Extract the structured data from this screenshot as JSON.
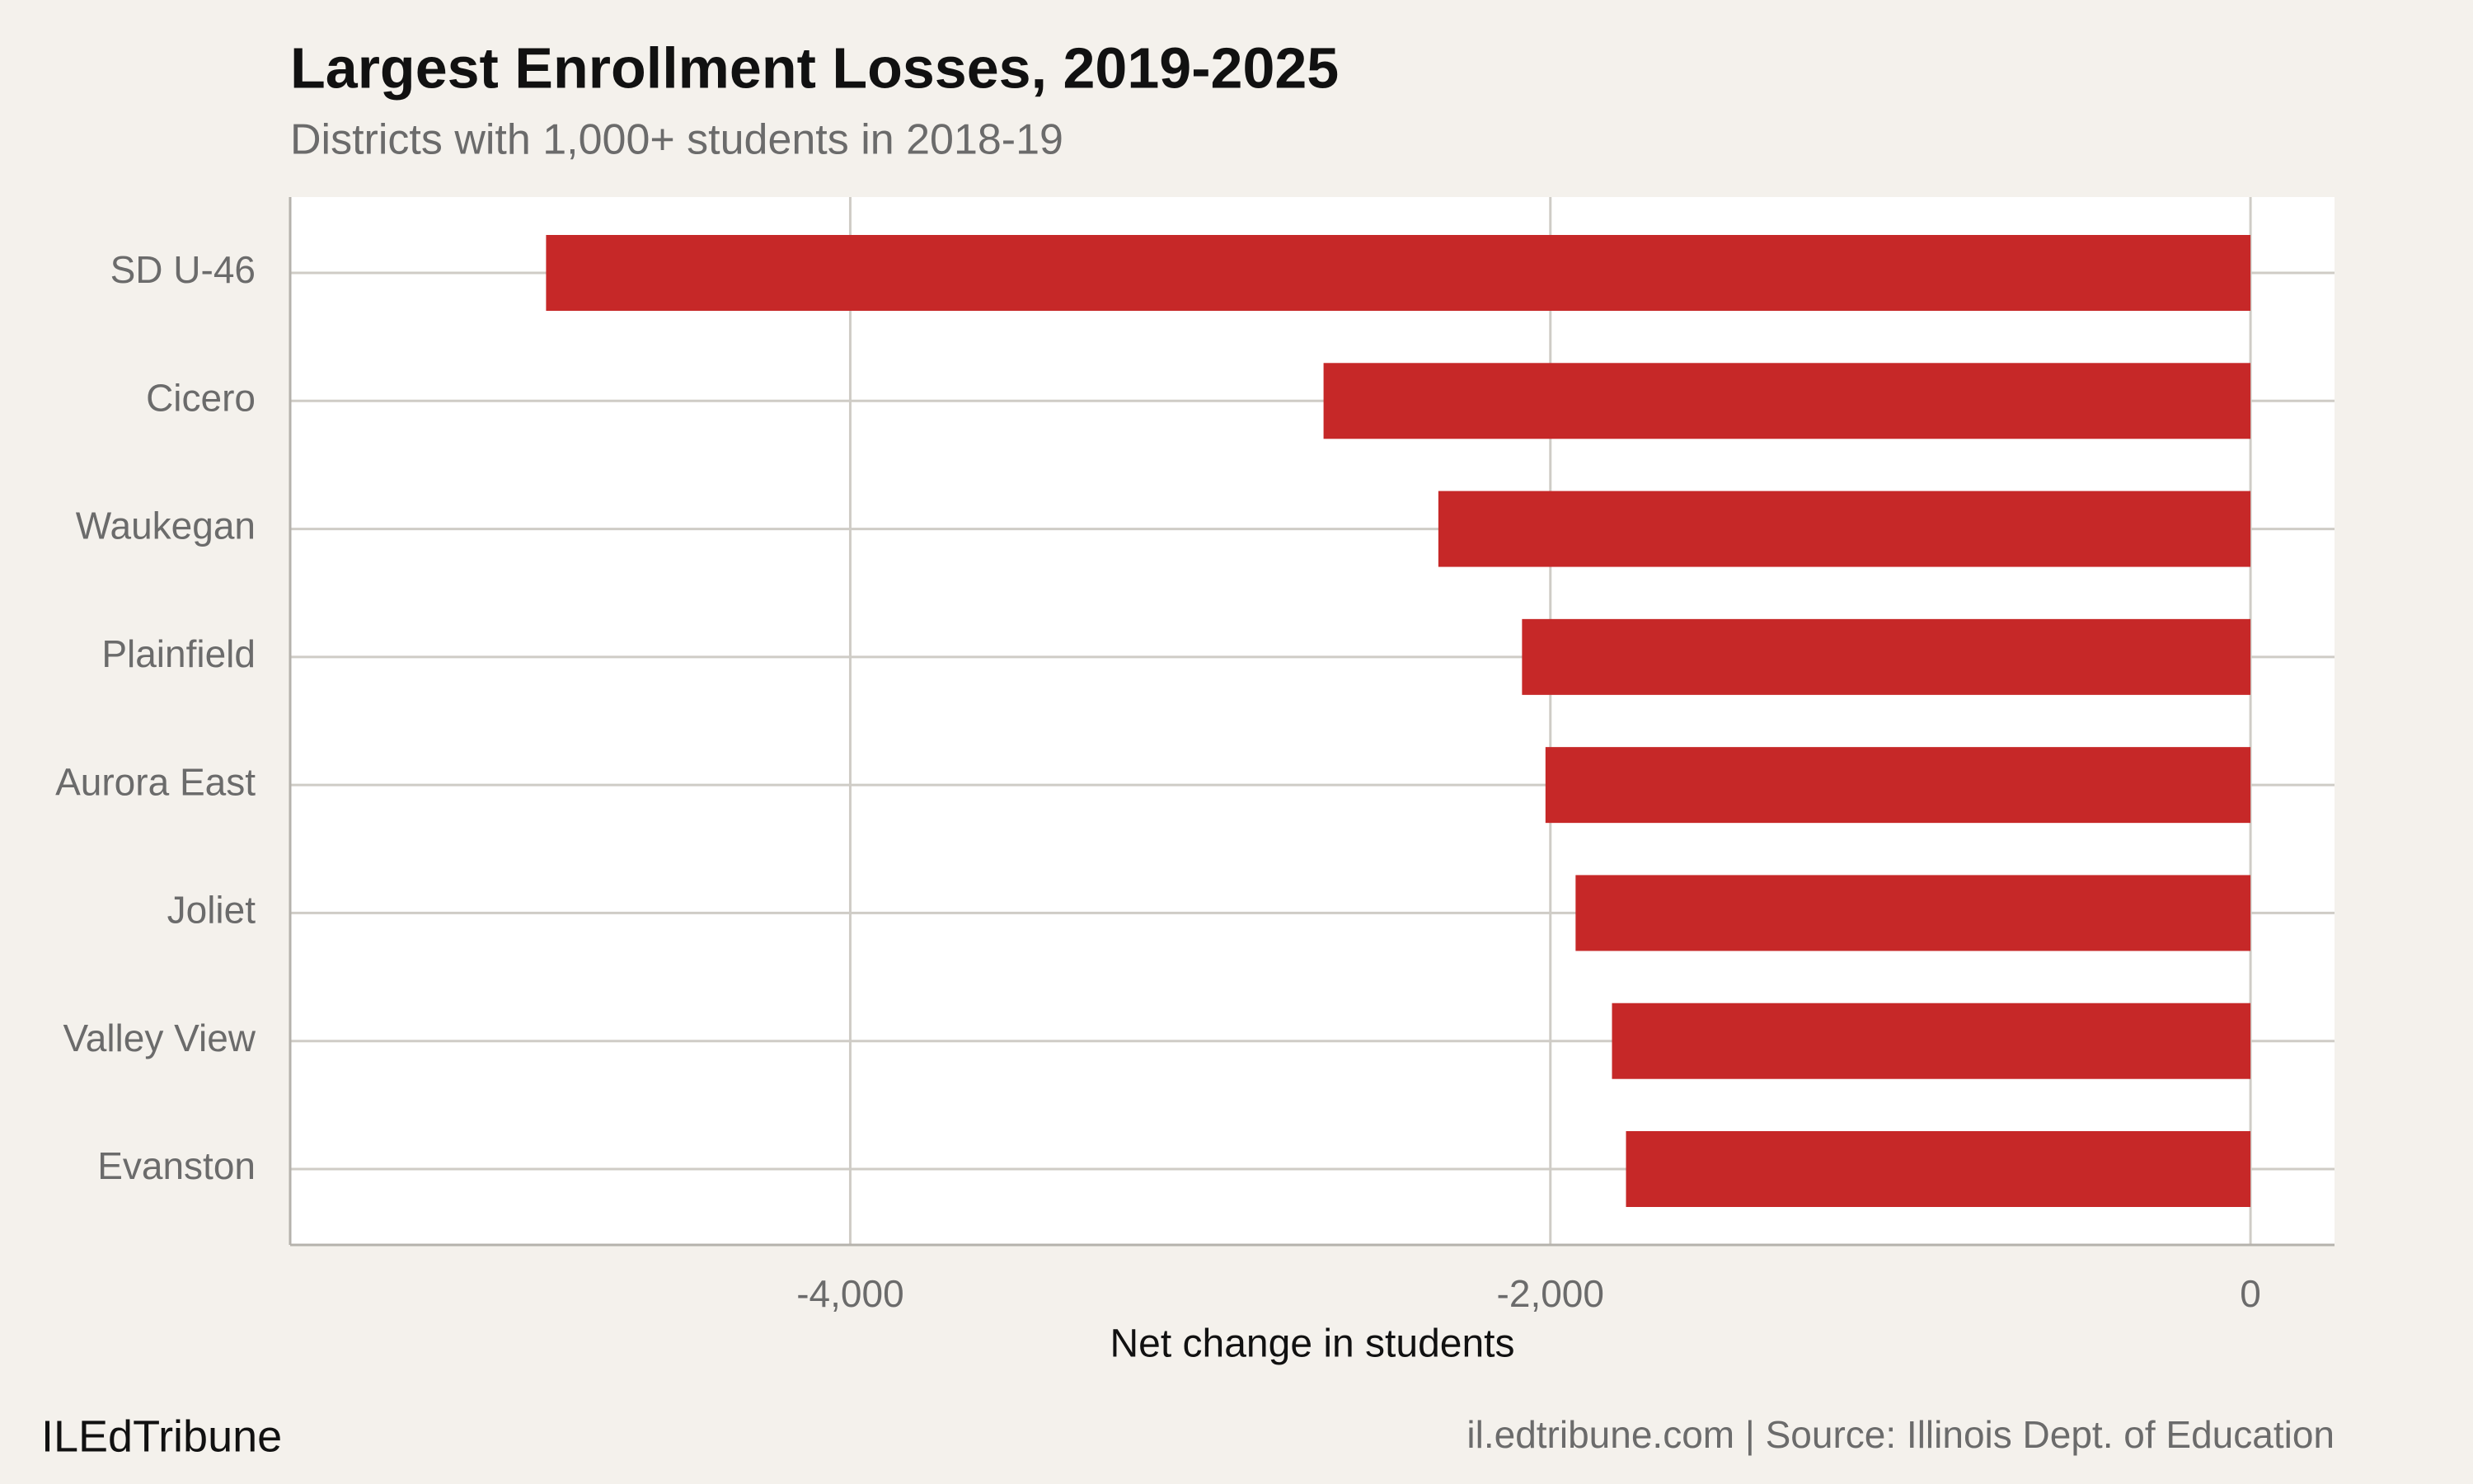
{
  "chart_data": {
    "type": "bar",
    "orientation": "horizontal",
    "title": "Largest Enrollment Losses, 2019-2025",
    "subtitle": "Districts with 1,000+ students in 2018-19",
    "categories": [
      "SD U-46",
      "Cicero",
      "Waukegan",
      "Plainfield",
      "Aurora East",
      "Joliet",
      "Valley View",
      "Evanston"
    ],
    "values": [
      -4869,
      -2648,
      -2320,
      -2081,
      -2014,
      -1928,
      -1824,
      -1784
    ],
    "color": "#c62828",
    "xlim": [
      -5600,
      240
    ],
    "xticks": [
      {
        "value": -4000,
        "label": "-4,000"
      },
      {
        "value": -2000,
        "label": "-2,000"
      },
      0
    ],
    "xlabel": "Net change in students",
    "grid": true,
    "brand": "ILEdTribune",
    "caption": "il.edtribune.com | Source: Illinois Dept. of Education"
  }
}
